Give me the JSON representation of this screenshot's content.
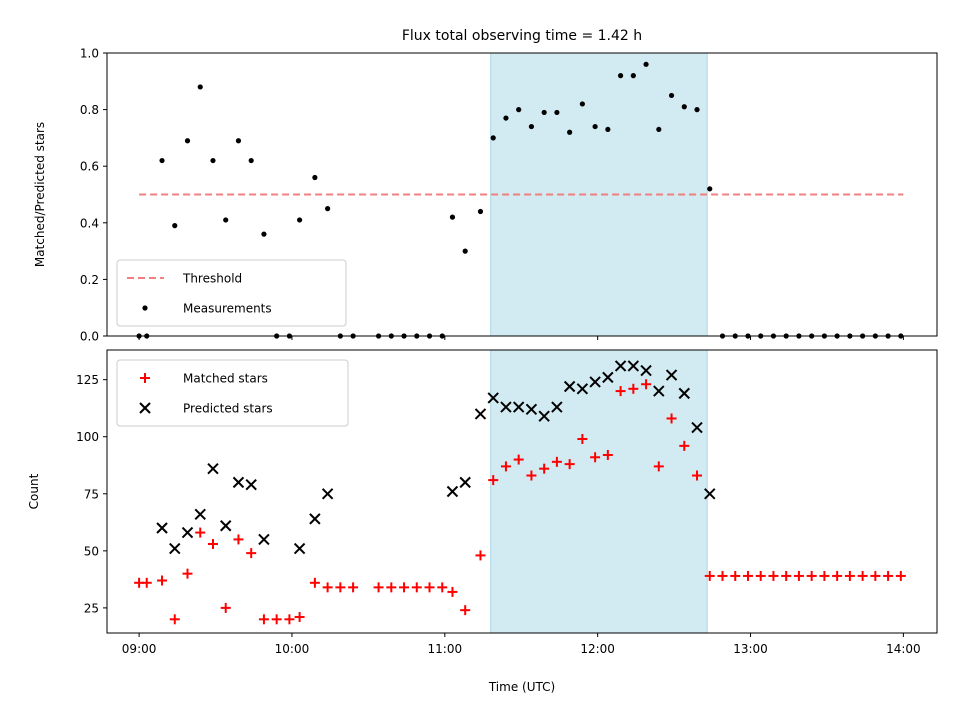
{
  "chart_data": {
    "title": "Flux total observing time = 1.42 h",
    "xlabel": "Time (UTC)",
    "x_ticks": [
      "09:00",
      "10:00",
      "11:00",
      "12:00",
      "13:00",
      "14:00"
    ],
    "x_range_hours": [
      8.79,
      14.22
    ],
    "highlight_span": {
      "start": "11:18",
      "end": "12:43",
      "color": "#add8e6"
    },
    "panels": [
      {
        "type": "scatter",
        "ylabel": "Matched/Predicted stars",
        "ylim": [
          0,
          1
        ],
        "y_ticks": [
          "0.0",
          "0.2",
          "0.4",
          "0.6",
          "0.8",
          "1.0"
        ],
        "legend_position": "lower left",
        "threshold": {
          "name": "Threshold",
          "value": 0.5,
          "x_start": "09:00",
          "x_end": "14:00",
          "color": "#f08080",
          "style": "dashed"
        },
        "series": [
          {
            "name": "Measurements",
            "marker": "dot",
            "color": "#000000",
            "points": [
              [
                "09:00",
                0
              ],
              [
                "09:03",
                0
              ],
              [
                "09:09",
                0.62
              ],
              [
                "09:14",
                0.39
              ],
              [
                "09:19",
                0.69
              ],
              [
                "09:24",
                0.88
              ],
              [
                "09:29",
                0.62
              ],
              [
                "09:34",
                0.41
              ],
              [
                "09:39",
                0.69
              ],
              [
                "09:44",
                0.62
              ],
              [
                "09:49",
                0.36
              ],
              [
                "09:54",
                0
              ],
              [
                "09:59",
                0
              ],
              [
                "10:03",
                0.41
              ],
              [
                "10:09",
                0.56
              ],
              [
                "10:14",
                0.45
              ],
              [
                "10:19",
                0
              ],
              [
                "10:24",
                0
              ],
              [
                "10:34",
                0
              ],
              [
                "10:39",
                0
              ],
              [
                "10:44",
                0
              ],
              [
                "10:49",
                0
              ],
              [
                "10:54",
                0
              ],
              [
                "10:59",
                0
              ],
              [
                "11:03",
                0.42
              ],
              [
                "11:08",
                0.3
              ],
              [
                "11:14",
                0.44
              ],
              [
                "11:19",
                0.7
              ],
              [
                "11:24",
                0.77
              ],
              [
                "11:29",
                0.8
              ],
              [
                "11:34",
                0.74
              ],
              [
                "11:39",
                0.79
              ],
              [
                "11:44",
                0.79
              ],
              [
                "11:49",
                0.72
              ],
              [
                "11:54",
                0.82
              ],
              [
                "11:59",
                0.74
              ],
              [
                "12:04",
                0.73
              ],
              [
                "12:09",
                0.92
              ],
              [
                "12:14",
                0.92
              ],
              [
                "12:19",
                0.96
              ],
              [
                "12:24",
                0.73
              ],
              [
                "12:29",
                0.85
              ],
              [
                "12:34",
                0.81
              ],
              [
                "12:39",
                0.8
              ],
              [
                "12:44",
                0.52
              ],
              [
                "12:49",
                0
              ],
              [
                "12:54",
                0
              ],
              [
                "12:59",
                0
              ],
              [
                "13:04",
                0
              ],
              [
                "13:09",
                0
              ],
              [
                "13:14",
                0
              ],
              [
                "13:19",
                0
              ],
              [
                "13:24",
                0
              ],
              [
                "13:29",
                0
              ],
              [
                "13:34",
                0
              ],
              [
                "13:39",
                0
              ],
              [
                "13:44",
                0
              ],
              [
                "13:49",
                0
              ],
              [
                "13:54",
                0
              ],
              [
                "13:59",
                0
              ]
            ]
          }
        ]
      },
      {
        "type": "scatter",
        "ylabel": "Count",
        "ylim": [
          14,
          138
        ],
        "y_ticks": [
          "25",
          "50",
          "75",
          "100",
          "125"
        ],
        "legend_position": "upper left",
        "series": [
          {
            "name": "Matched stars",
            "marker": "plus",
            "color": "#ff0000",
            "points": [
              [
                "09:00",
                36
              ],
              [
                "09:03",
                36
              ],
              [
                "09:09",
                37
              ],
              [
                "09:14",
                20
              ],
              [
                "09:19",
                40
              ],
              [
                "09:24",
                58
              ],
              [
                "09:29",
                53
              ],
              [
                "09:34",
                25
              ],
              [
                "09:39",
                55
              ],
              [
                "09:44",
                49
              ],
              [
                "09:49",
                20
              ],
              [
                "09:54",
                20
              ],
              [
                "09:59",
                20
              ],
              [
                "10:03",
                21
              ],
              [
                "10:09",
                36
              ],
              [
                "10:14",
                34
              ],
              [
                "10:19",
                34
              ],
              [
                "10:24",
                34
              ],
              [
                "10:34",
                34
              ],
              [
                "10:39",
                34
              ],
              [
                "10:44",
                34
              ],
              [
                "10:49",
                34
              ],
              [
                "10:54",
                34
              ],
              [
                "10:59",
                34
              ],
              [
                "11:03",
                32
              ],
              [
                "11:08",
                24
              ],
              [
                "11:14",
                48
              ],
              [
                "11:19",
                81
              ],
              [
                "11:24",
                87
              ],
              [
                "11:29",
                90
              ],
              [
                "11:34",
                83
              ],
              [
                "11:39",
                86
              ],
              [
                "11:44",
                89
              ],
              [
                "11:49",
                88
              ],
              [
                "11:54",
                99
              ],
              [
                "11:59",
                91
              ],
              [
                "12:04",
                92
              ],
              [
                "12:09",
                120
              ],
              [
                "12:14",
                121
              ],
              [
                "12:19",
                123
              ],
              [
                "12:24",
                87
              ],
              [
                "12:29",
                108
              ],
              [
                "12:34",
                96
              ],
              [
                "12:39",
                83
              ],
              [
                "12:44",
                39
              ],
              [
                "12:49",
                39
              ],
              [
                "12:54",
                39
              ],
              [
                "12:59",
                39
              ],
              [
                "13:04",
                39
              ],
              [
                "13:09",
                39
              ],
              [
                "13:14",
                39
              ],
              [
                "13:19",
                39
              ],
              [
                "13:24",
                39
              ],
              [
                "13:29",
                39
              ],
              [
                "13:34",
                39
              ],
              [
                "13:39",
                39
              ],
              [
                "13:44",
                39
              ],
              [
                "13:49",
                39
              ],
              [
                "13:54",
                39
              ],
              [
                "13:59",
                39
              ]
            ]
          },
          {
            "name": "Predicted stars",
            "marker": "x",
            "color": "#000000",
            "points": [
              [
                "09:09",
                60
              ],
              [
                "09:14",
                51
              ],
              [
                "09:19",
                58
              ],
              [
                "09:24",
                66
              ],
              [
                "09:29",
                86
              ],
              [
                "09:34",
                61
              ],
              [
                "09:39",
                80
              ],
              [
                "09:44",
                79
              ],
              [
                "09:49",
                55
              ],
              [
                "10:03",
                51
              ],
              [
                "10:09",
                64
              ],
              [
                "10:14",
                75
              ],
              [
                "11:03",
                76
              ],
              [
                "11:08",
                80
              ],
              [
                "11:14",
                110
              ],
              [
                "11:19",
                117
              ],
              [
                "11:24",
                113
              ],
              [
                "11:29",
                113
              ],
              [
                "11:34",
                112
              ],
              [
                "11:39",
                109
              ],
              [
                "11:44",
                113
              ],
              [
                "11:49",
                122
              ],
              [
                "11:54",
                121
              ],
              [
                "11:59",
                124
              ],
              [
                "12:04",
                126
              ],
              [
                "12:09",
                131
              ],
              [
                "12:14",
                131
              ],
              [
                "12:19",
                129
              ],
              [
                "12:24",
                120
              ],
              [
                "12:29",
                127
              ],
              [
                "12:34",
                119
              ],
              [
                "12:39",
                104
              ],
              [
                "12:44",
                75
              ]
            ]
          }
        ]
      }
    ]
  }
}
